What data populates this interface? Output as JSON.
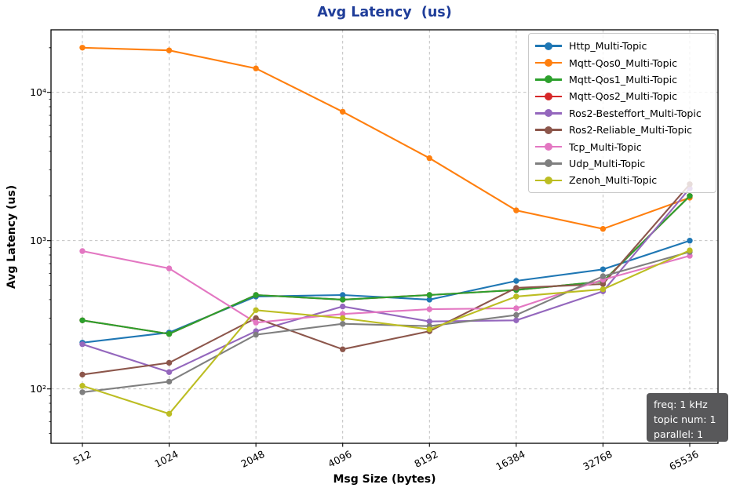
{
  "title": "Avg Latency  (us)",
  "axes": {
    "xlabel": "Msg Size (bytes)",
    "ylabel": "Avg Latency (us)",
    "y_ticks": [
      "10²",
      "10³",
      "10⁴"
    ]
  },
  "annotation": {
    "line1": "freq: 1 kHz",
    "line2": "topic num: 1",
    "line3": "parallel: 1"
  },
  "chart_data": {
    "type": "line",
    "title": "Avg Latency  (us)",
    "xlabel": "Msg Size (bytes)",
    "ylabel": "Avg Latency (us)",
    "x_scale": "log2-categorical",
    "y_scale": "log10",
    "ylim": [
      43,
      26000
    ],
    "grid": true,
    "grid_style": "dashed",
    "legend_position": "upper right",
    "annotation_text": "freq: 1 kHz\ntopic num: 1\nparallel: 1",
    "categories": [
      "512",
      "1024",
      "2048",
      "4096",
      "8192",
      "16384",
      "32768",
      "65536"
    ],
    "series": [
      {
        "name": "Http_Multi-Topic",
        "color": "#1f77b4",
        "values": [
          205,
          240,
          420,
          430,
          400,
          535,
          640,
          1000
        ]
      },
      {
        "name": "Mqtt-Qos0_Multi-Topic",
        "color": "#ff7f0e",
        "values": [
          20000,
          19200,
          14500,
          7400,
          3600,
          1600,
          1200,
          1950
        ]
      },
      {
        "name": "Mqtt-Qos1_Multi-Topic",
        "color": "#2ca02c",
        "values": [
          290,
          235,
          430,
          400,
          430,
          465,
          530,
          2000
        ]
      },
      {
        "name": "Mqtt-Qos2_Multi-Topic",
        "color": "#d62728",
        "values": [
          290,
          235,
          430,
          400,
          430,
          465,
          530,
          2000
        ]
      },
      {
        "name": "Ros2-Besteffort_Multi-Topic",
        "color": "#9467bd",
        "values": [
          200,
          130,
          245,
          360,
          285,
          290,
          455,
          2250
        ]
      },
      {
        "name": "Ros2-Reliable_Multi-Topic",
        "color": "#8c564b",
        "values": [
          125,
          150,
          300,
          185,
          245,
          480,
          510,
          2400
        ]
      },
      {
        "name": "Tcp_Multi-Topic",
        "color": "#e377c2",
        "values": [
          850,
          650,
          280,
          320,
          345,
          350,
          545,
          790
        ]
      },
      {
        "name": "Udp_Multi-Topic",
        "color": "#7f7f7f",
        "values": [
          95,
          112,
          232,
          275,
          265,
          315,
          575,
          840
        ]
      },
      {
        "name": "Zenoh_Multi-Topic",
        "color": "#bcbd22",
        "values": [
          105,
          68,
          340,
          300,
          252,
          420,
          470,
          860
        ]
      }
    ],
    "draw_order": [
      0,
      1,
      3,
      2,
      4,
      5,
      6,
      7,
      8
    ]
  }
}
